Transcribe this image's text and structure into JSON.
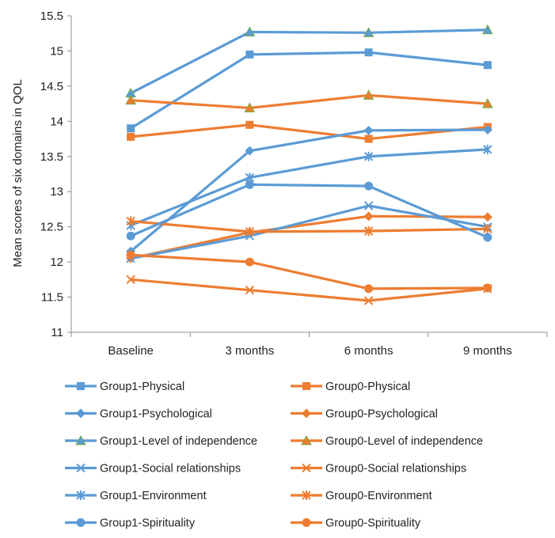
{
  "chart_data": {
    "type": "line",
    "title": "",
    "xlabel": "",
    "ylabel": "Mean scores of  six domains in QOL",
    "categories": [
      "Baseline",
      "3 months",
      "6 months",
      "9 months"
    ],
    "ylim": [
      11,
      15.5
    ],
    "ytick_step": 0.5,
    "ytick_labels": [
      "11",
      "11.5",
      "12",
      "12.5",
      "13",
      "13.5",
      "14",
      "14.5",
      "15",
      "15.5"
    ],
    "grid": false,
    "legend_position": "bottom",
    "colors": {
      "Group1": "#5b9bd5",
      "Group0": "#ed7d31"
    },
    "series": [
      {
        "name": "Group1-Physical",
        "group": "Group1",
        "marker": "square",
        "values": [
          13.9,
          14.95,
          14.98,
          14.8
        ]
      },
      {
        "name": "Group0-Physical",
        "group": "Group0",
        "marker": "square",
        "values": [
          13.78,
          13.95,
          13.75,
          13.92
        ]
      },
      {
        "name": "Group1-Psychological",
        "group": "Group1",
        "marker": "diamond",
        "values": [
          12.15,
          13.58,
          13.87,
          13.88
        ]
      },
      {
        "name": "Group0-Psychological",
        "group": "Group0",
        "marker": "diamond",
        "values": [
          12.05,
          12.42,
          12.65,
          12.64
        ]
      },
      {
        "name": "Group1-Level of independence",
        "group": "Group1",
        "marker": "triangle",
        "values": [
          14.4,
          15.27,
          15.26,
          15.3
        ]
      },
      {
        "name": "Group0-Level of independence",
        "group": "Group0",
        "marker": "triangle",
        "values": [
          14.3,
          14.19,
          14.37,
          14.25
        ]
      },
      {
        "name": "Group1-Social relationships",
        "group": "Group1",
        "marker": "x",
        "values": [
          12.05,
          12.37,
          12.8,
          12.5
        ]
      },
      {
        "name": "Group0-Social relationships",
        "group": "Group0",
        "marker": "x",
        "values": [
          11.75,
          11.6,
          11.45,
          11.62
        ]
      },
      {
        "name": "Group1-Environment",
        "group": "Group1",
        "marker": "star",
        "values": [
          12.52,
          13.2,
          13.5,
          13.6
        ]
      },
      {
        "name": "Group0-Environment",
        "group": "Group0",
        "marker": "star",
        "values": [
          12.58,
          12.43,
          12.44,
          12.47
        ]
      },
      {
        "name": "Group1-Spirituality",
        "group": "Group1",
        "marker": "circle",
        "values": [
          12.37,
          13.1,
          13.08,
          12.35
        ]
      },
      {
        "name": "Group0-Spirituality",
        "group": "Group0",
        "marker": "circle",
        "values": [
          12.1,
          12.0,
          11.62,
          11.63
        ]
      }
    ]
  }
}
